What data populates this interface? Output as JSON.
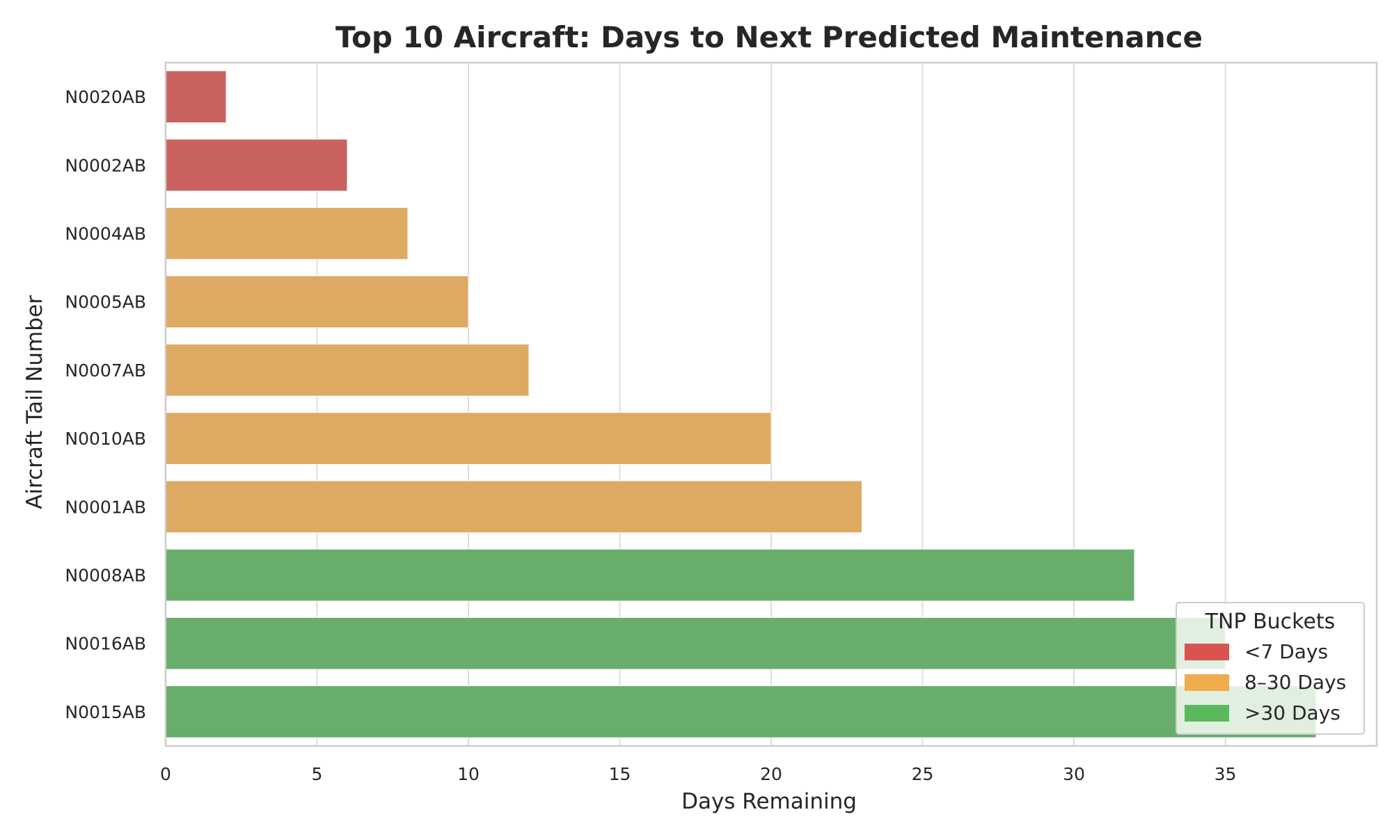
{
  "chart_data": {
    "type": "bar",
    "orientation": "horizontal",
    "title": "Top 10 Aircraft: Days to Next Predicted Maintenance",
    "xlabel": "Days Remaining",
    "ylabel": "Aircraft Tail Number",
    "xlim": [
      0,
      40
    ],
    "xticks": [
      "0",
      "5",
      "10",
      "15",
      "20",
      "25",
      "30",
      "35"
    ],
    "xtick_values": [
      0,
      5,
      10,
      15,
      20,
      25,
      30,
      35
    ],
    "grid": true,
    "categories": [
      "N0020AB",
      "N0002AB",
      "N0004AB",
      "N0005AB",
      "N0007AB",
      "N0010AB",
      "N0001AB",
      "N0008AB",
      "N0016AB",
      "N0015AB"
    ],
    "values": [
      2,
      6,
      8,
      10,
      12,
      20,
      23,
      32,
      35,
      38
    ],
    "buckets": [
      "<7 Days",
      "<7 Days",
      "8–30 Days",
      "8–30 Days",
      "8–30 Days",
      "8–30 Days",
      "8–30 Days",
      ">30 Days",
      ">30 Days",
      ">30 Days"
    ],
    "legend": {
      "title": "TNP Buckets",
      "placement": "lower-right",
      "entries": [
        {
          "label": "<7 Days",
          "color": "#d9534f"
        },
        {
          "label": "8–30 Days",
          "color": "#f0ad4e"
        },
        {
          "label": ">30 Days",
          "color": "#5cb85c"
        }
      ]
    },
    "bar_colors": {
      "<7 Days": "#c9625f",
      "8–30 Days": "#dea963",
      ">30 Days": "#68ad6a"
    }
  }
}
